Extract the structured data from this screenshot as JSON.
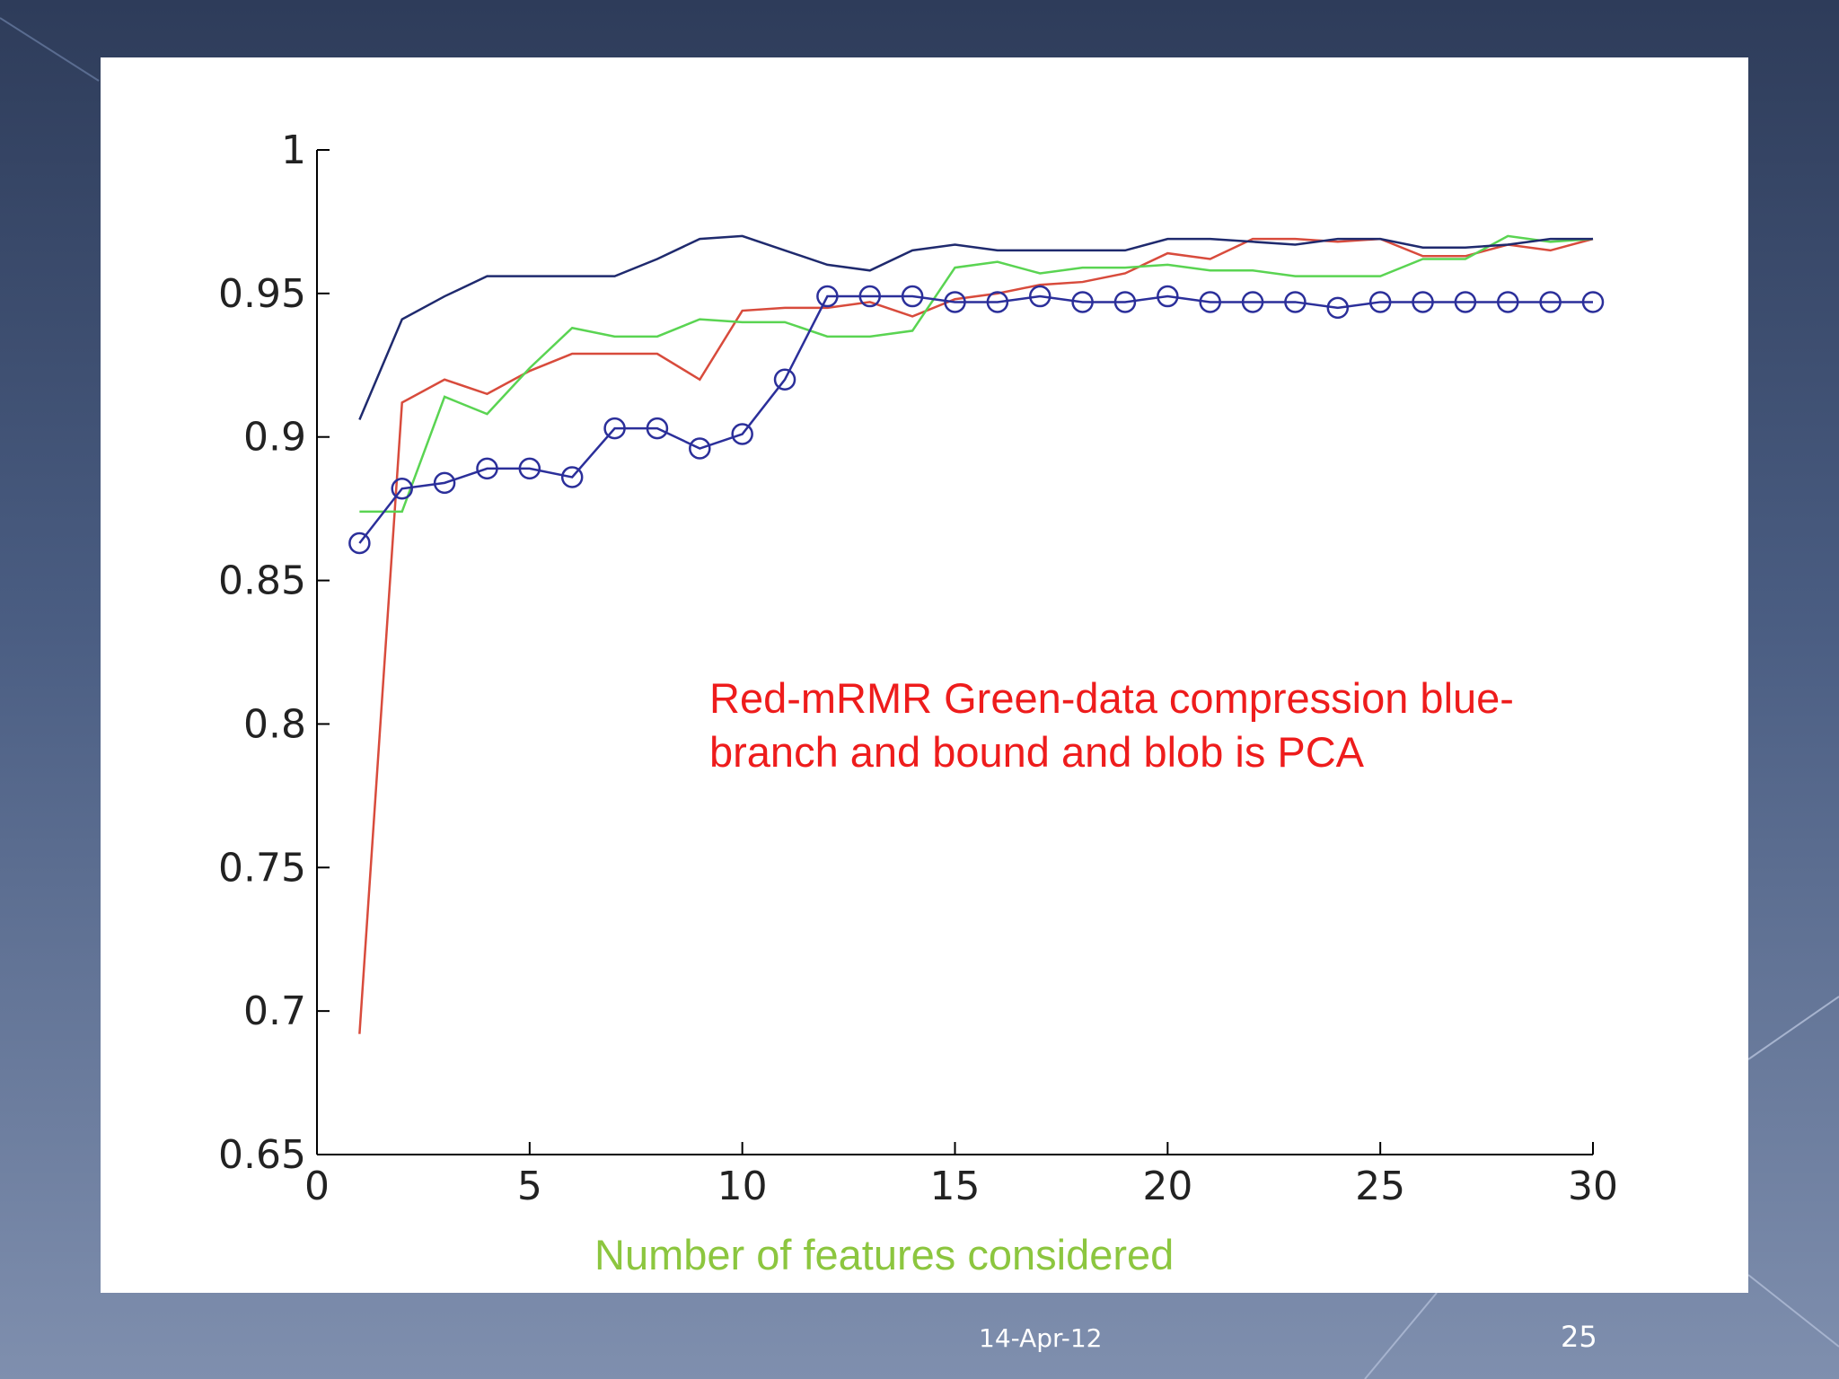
{
  "slide": {
    "footer_date": "14-Apr-12",
    "page_number": "25"
  },
  "chart_data": {
    "type": "line",
    "annotation_line1": "Red-mRMR Green-data compression blue-",
    "annotation_line2": "branch and bound and blob is PCA",
    "xlabel": "Number of features considered",
    "ylabel": "",
    "xlim": [
      0,
      30
    ],
    "ylim": [
      0.65,
      1
    ],
    "xticks": [
      0,
      5,
      10,
      15,
      20,
      25,
      30
    ],
    "yticks": [
      "0.65",
      "0.7",
      "0.75",
      "0.8",
      "0.85",
      "0.9",
      "0.95",
      "1"
    ],
    "grid": false,
    "x": [
      1,
      2,
      3,
      4,
      5,
      6,
      7,
      8,
      9,
      10,
      11,
      12,
      13,
      14,
      15,
      16,
      17,
      18,
      19,
      20,
      21,
      22,
      23,
      24,
      25,
      26,
      27,
      28,
      29,
      30
    ],
    "series": [
      {
        "color": "#d84b3c",
        "values": [
          0.692,
          0.912,
          0.92,
          0.915,
          0.923,
          0.929,
          0.929,
          0.929,
          0.92,
          0.944,
          0.945,
          0.945,
          0.947,
          0.942,
          0.948,
          0.95,
          0.953,
          0.954,
          0.957,
          0.964,
          0.962,
          0.969,
          0.969,
          0.968,
          0.969,
          0.963,
          0.963,
          0.967,
          0.965,
          0.969
        ]
      },
      {
        "color": "#5ad452",
        "values": [
          0.874,
          0.874,
          0.914,
          0.908,
          0.924,
          0.938,
          0.935,
          0.935,
          0.941,
          0.94,
          0.94,
          0.935,
          0.935,
          0.937,
          0.959,
          0.961,
          0.957,
          0.959,
          0.959,
          0.96,
          0.958,
          0.958,
          0.956,
          0.956,
          0.956,
          0.962,
          0.962,
          0.97,
          0.968,
          0.969
        ]
      },
      {
        "color": "#1f2a6e",
        "values": [
          0.906,
          0.941,
          0.949,
          0.956,
          0.956,
          0.956,
          0.956,
          0.962,
          0.969,
          0.97,
          0.965,
          0.96,
          0.958,
          0.965,
          0.967,
          0.965,
          0.965,
          0.965,
          0.965,
          0.969,
          0.969,
          0.968,
          0.967,
          0.969,
          0.969,
          0.966,
          0.966,
          0.967,
          0.969,
          0.969
        ]
      },
      {
        "color": "#2b2f9a",
        "marker": "circle",
        "values": [
          0.863,
          0.882,
          0.884,
          0.889,
          0.889,
          0.886,
          0.903,
          0.903,
          0.896,
          0.901,
          0.92,
          0.949,
          0.949,
          0.949,
          0.947,
          0.947,
          0.949,
          0.947,
          0.947,
          0.949,
          0.947,
          0.947,
          0.947,
          0.945,
          0.947,
          0.947,
          0.947,
          0.947,
          0.947,
          0.947
        ]
      }
    ]
  }
}
